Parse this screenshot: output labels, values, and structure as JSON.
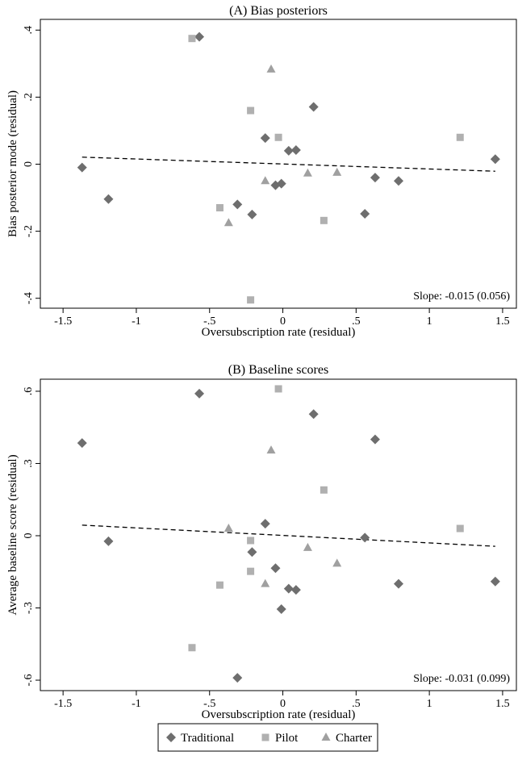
{
  "chart_data": [
    {
      "type": "scatter",
      "title": "(A) Bias posteriors",
      "xlabel": "Oversubscription rate (residual)",
      "ylabel": "Bias posterior mode (residual)",
      "xlim": [
        -1.6,
        1.55
      ],
      "ylim": [
        -0.42,
        0.42
      ],
      "xticks": [
        -1.5,
        -1,
        -0.5,
        0,
        0.5,
        1,
        1.5
      ],
      "xtick_labels": [
        "-1.5",
        "-1",
        "-.5",
        "0",
        ".5",
        "1",
        "1.5"
      ],
      "yticks": [
        0.4,
        0.2,
        0,
        -0.2,
        -0.4
      ],
      "ytick_labels": [
        ".4",
        ".2",
        "0",
        "-.2",
        "-.4"
      ],
      "grid": false,
      "annotation": "Slope: -0.015 (0.056)",
      "fit_line": {
        "x": [
          -1.37,
          1.45
        ],
        "y": [
          0.021,
          -0.021
        ],
        "style": "dashed"
      },
      "series": [
        {
          "name": "Traditional",
          "marker": "diamond",
          "color": "#6e6e6e",
          "points": [
            [
              -1.37,
              -0.01
            ],
            [
              -1.19,
              -0.104
            ],
            [
              -0.57,
              0.38
            ],
            [
              -0.31,
              -0.12
            ],
            [
              -0.21,
              -0.15
            ],
            [
              -0.12,
              0.078
            ],
            [
              -0.05,
              -0.063
            ],
            [
              -0.01,
              -0.058
            ],
            [
              0.04,
              0.04
            ],
            [
              0.09,
              0.042
            ],
            [
              0.21,
              0.171
            ],
            [
              0.56,
              -0.148
            ],
            [
              0.63,
              -0.04
            ],
            [
              0.79,
              -0.05
            ],
            [
              1.45,
              0.015
            ]
          ]
        },
        {
          "name": "Pilot",
          "marker": "square",
          "color": "#b0b0b0",
          "points": [
            [
              -0.62,
              0.375
            ],
            [
              -0.43,
              -0.13
            ],
            [
              -0.22,
              0.16
            ],
            [
              -0.22,
              -0.405
            ],
            [
              -0.03,
              0.08
            ],
            [
              0.28,
              -0.168
            ],
            [
              1.21,
              0.08
            ]
          ]
        },
        {
          "name": "Charter",
          "marker": "triangle",
          "color": "#a0a0a0",
          "points": [
            [
              -0.37,
              -0.175
            ],
            [
              -0.12,
              -0.05
            ],
            [
              -0.08,
              0.283
            ],
            [
              0.17,
              -0.027
            ],
            [
              0.37,
              -0.025
            ]
          ]
        }
      ]
    },
    {
      "type": "scatter",
      "title": "(B) Baseline scores",
      "xlabel": "Oversubscription rate (residual)",
      "ylabel": "Average baseline score (residual)",
      "xlim": [
        -1.6,
        1.55
      ],
      "ylim": [
        -0.63,
        0.63
      ],
      "xticks": [
        -1.5,
        -1,
        -0.5,
        0,
        0.5,
        1,
        1.5
      ],
      "xtick_labels": [
        "-1.5",
        "-1",
        "-.5",
        "0",
        ".5",
        "1",
        "1.5"
      ],
      "yticks": [
        0.6,
        0.3,
        0,
        -0.3,
        -0.6
      ],
      "ytick_labels": [
        ".6",
        ".3",
        "0",
        "-.3",
        "-.6"
      ],
      "grid": false,
      "annotation": "Slope: -0.031 (0.099)",
      "fit_line": {
        "x": [
          -1.37,
          1.45
        ],
        "y": [
          0.044,
          -0.044
        ],
        "style": "dashed"
      },
      "series": [
        {
          "name": "Traditional",
          "marker": "diamond",
          "color": "#6e6e6e",
          "points": [
            [
              -1.37,
              0.385
            ],
            [
              -1.19,
              -0.023
            ],
            [
              -0.57,
              0.59
            ],
            [
              -0.31,
              -0.59
            ],
            [
              -0.21,
              -0.068
            ],
            [
              -0.12,
              0.05
            ],
            [
              -0.05,
              -0.135
            ],
            [
              -0.01,
              -0.305
            ],
            [
              0.04,
              -0.22
            ],
            [
              0.09,
              -0.225
            ],
            [
              0.21,
              0.505
            ],
            [
              0.56,
              -0.008
            ],
            [
              0.63,
              0.4
            ],
            [
              0.79,
              -0.2
            ],
            [
              1.45,
              -0.19
            ]
          ]
        },
        {
          "name": "Pilot",
          "marker": "square",
          "color": "#b0b0b0",
          "points": [
            [
              -0.62,
              -0.465
            ],
            [
              -0.43,
              -0.205
            ],
            [
              -0.22,
              -0.02
            ],
            [
              -0.22,
              -0.148
            ],
            [
              -0.03,
              0.61
            ],
            [
              0.28,
              0.19
            ],
            [
              1.21,
              0.03
            ]
          ]
        },
        {
          "name": "Charter",
          "marker": "triangle",
          "color": "#a0a0a0",
          "points": [
            [
              -0.37,
              0.03
            ],
            [
              -0.12,
              -0.2
            ],
            [
              -0.08,
              0.355
            ],
            [
              0.17,
              -0.05
            ],
            [
              0.37,
              -0.115
            ]
          ]
        }
      ]
    }
  ],
  "legend": {
    "placement": "bottom",
    "items": [
      {
        "label": "Traditional",
        "marker": "diamond",
        "color": "#6e6e6e"
      },
      {
        "label": "Pilot",
        "marker": "square",
        "color": "#b0b0b0"
      },
      {
        "label": "Charter",
        "marker": "triangle",
        "color": "#a0a0a0"
      }
    ]
  }
}
